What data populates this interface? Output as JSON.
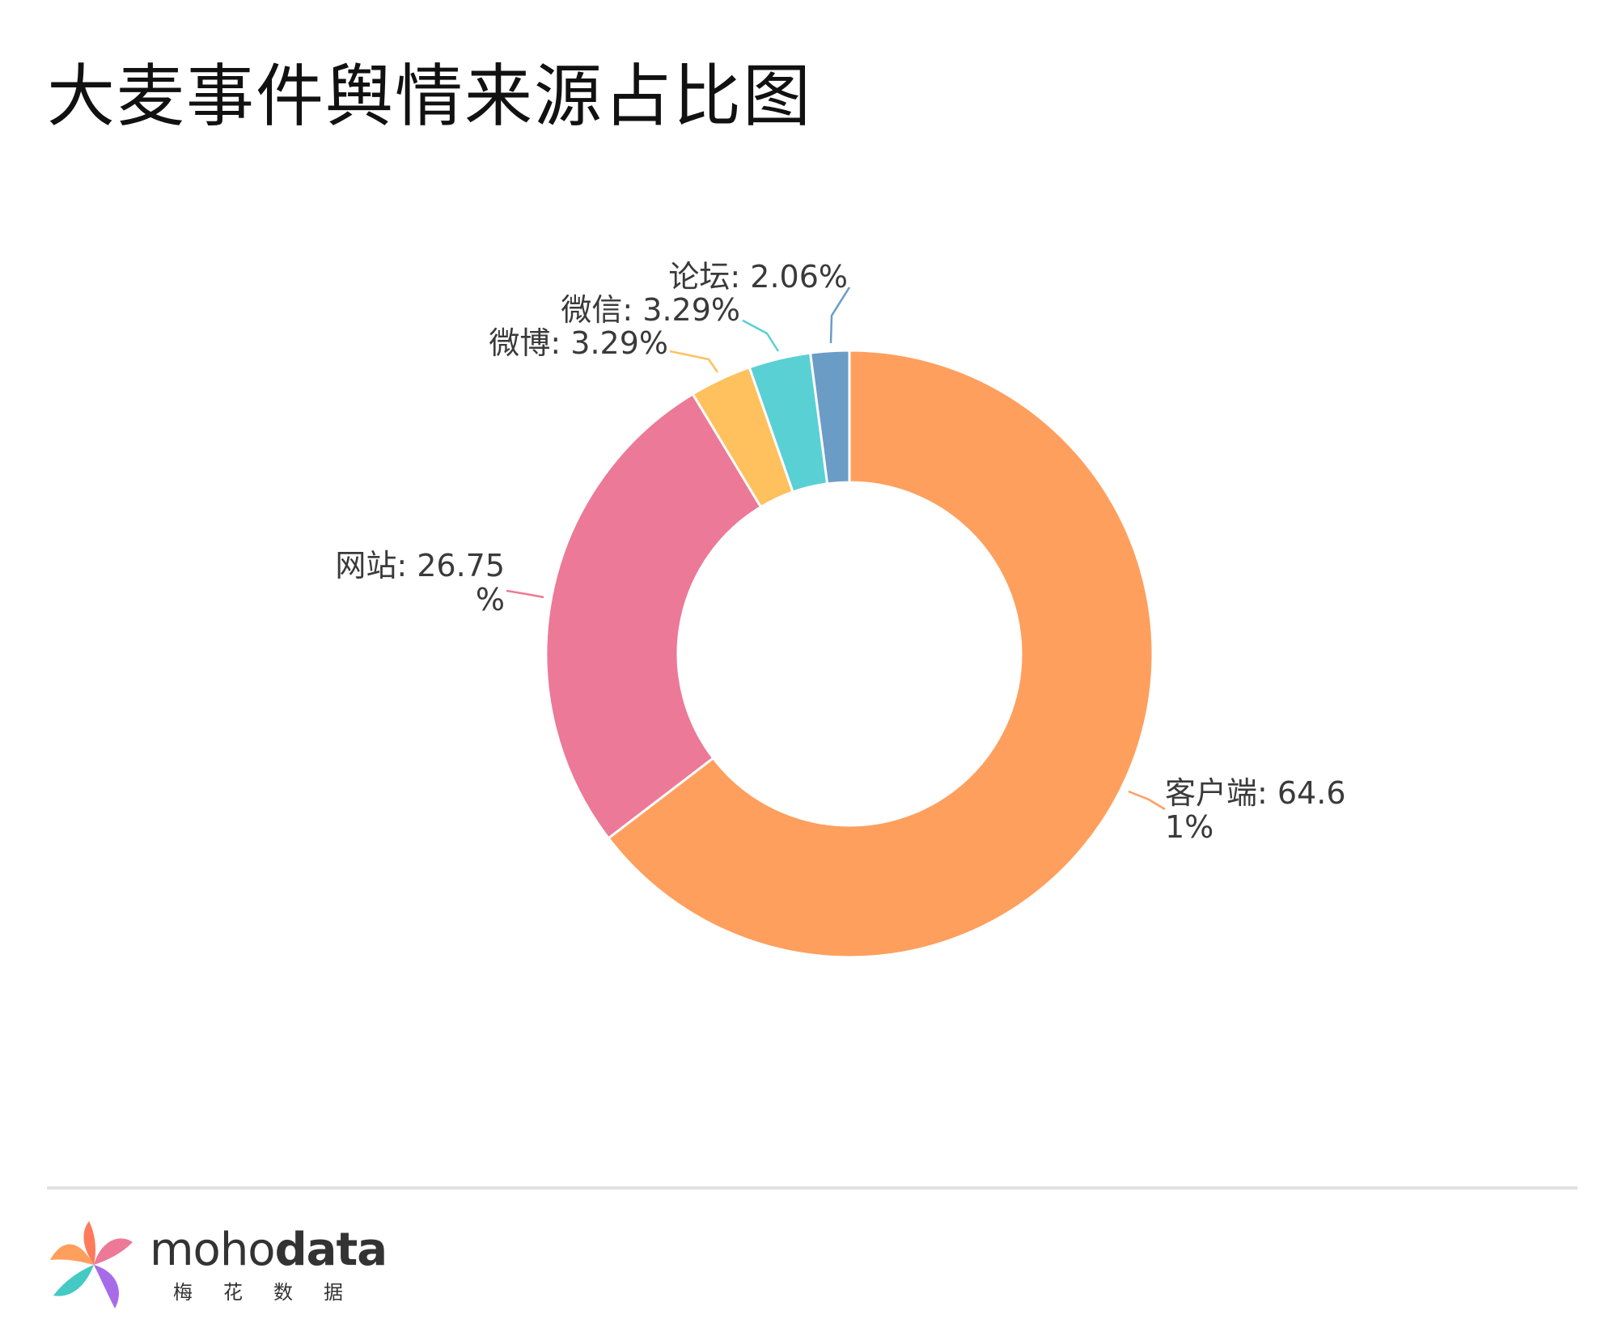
{
  "header": {
    "title": "大麦事件舆情来源占比图"
  },
  "chart_data": {
    "type": "pie",
    "variant": "donut",
    "title": "大麦事件舆情来源占比图",
    "slices": [
      {
        "name": "客户端",
        "value": 64.61,
        "color": "#FF9F5E",
        "label_lines": [
          "客户端: 64.6",
          "1%"
        ]
      },
      {
        "name": "网站",
        "value": 26.75,
        "color": "#EC7997",
        "label_lines": [
          "网站: 26.75",
          "%"
        ]
      },
      {
        "name": "微博",
        "value": 3.29,
        "color": "#FFC15E",
        "label_lines": [
          "微博: 3.29%"
        ]
      },
      {
        "name": "微信",
        "value": 3.29,
        "color": "#59D0D4",
        "label_lines": [
          "微信: 3.29%"
        ]
      },
      {
        "name": "论坛",
        "value": 2.06,
        "color": "#6A9CC6",
        "label_lines": [
          "论坛: 2.06%"
        ]
      }
    ]
  },
  "footer": {
    "brand_regular": "moho",
    "brand_bold": "data",
    "brand_sub": "梅花数据"
  }
}
